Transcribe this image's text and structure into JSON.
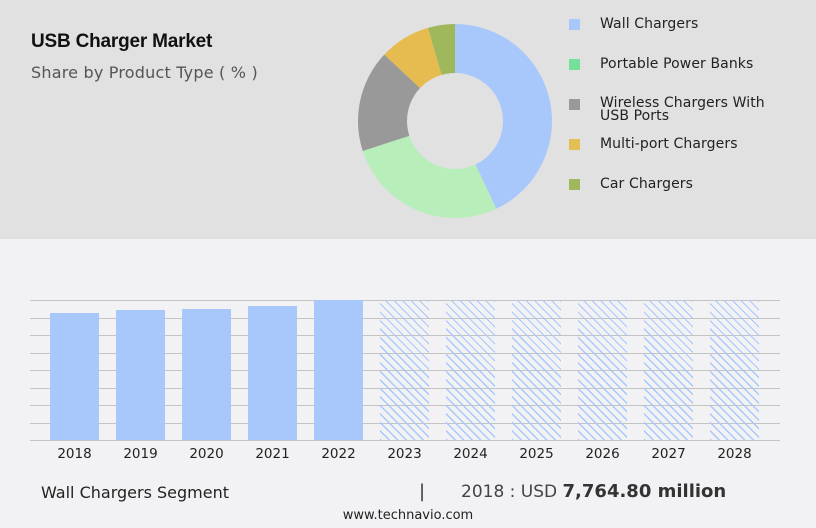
{
  "header": {
    "title": "USB Charger Market",
    "subtitle": "Share by Product Type ( % )"
  },
  "legend": [
    {
      "label": "Wall Chargers",
      "color": "#a8c8fc"
    },
    {
      "label": "Portable Power Banks",
      "color": "#74e09a"
    },
    {
      "label": "Wireless Chargers With USB Ports",
      "color": "#999999"
    },
    {
      "label": "Multi-port Chargers",
      "color": "#e2c056"
    },
    {
      "label": "Car Chargers",
      "color": "#a0b85c"
    }
  ],
  "footer": {
    "segment": "Wall Chargers Segment",
    "divider": "|",
    "value_prefix": "2018 : USD",
    "value": "7,764.80 million",
    "source": "www.technavio.com"
  },
  "chart_data": [
    {
      "type": "pie",
      "title": "USB Charger Market",
      "subtitle": "Share by Product Type ( % )",
      "donut": true,
      "categories": [
        "Wall Chargers",
        "Portable Power Banks",
        "Wireless Chargers With USB Ports",
        "Multi-port Chargers",
        "Car Chargers"
      ],
      "values": [
        43,
        27,
        17,
        8.5,
        4.5
      ],
      "slice_colors": [
        "#a8c8fc",
        "#b8eeba",
        "#999999",
        "#e6bb50",
        "#a0b85c"
      ],
      "legend_position": "right"
    },
    {
      "type": "bar",
      "title": "Wall Chargers Segment",
      "categories": [
        "2018",
        "2019",
        "2020",
        "2021",
        "2022",
        "2023",
        "2024",
        "2025",
        "2026",
        "2027",
        "2028"
      ],
      "values": [
        7764.8,
        8130,
        8250,
        8500,
        8870,
        null,
        null,
        null,
        null,
        null,
        null
      ],
      "relative_heights": [
        0.907,
        0.929,
        0.936,
        0.957,
        1.0,
        1.0,
        1.0,
        1.0,
        1.0,
        1.0,
        1.0
      ],
      "forecast_from": "2023",
      "forecast_style": "hatched",
      "xlabel": "",
      "ylabel": "",
      "grid": true,
      "gridlines": 9,
      "annotation": "2018 : USD 7,764.80 million",
      "color": "#a8c8fc"
    }
  ]
}
